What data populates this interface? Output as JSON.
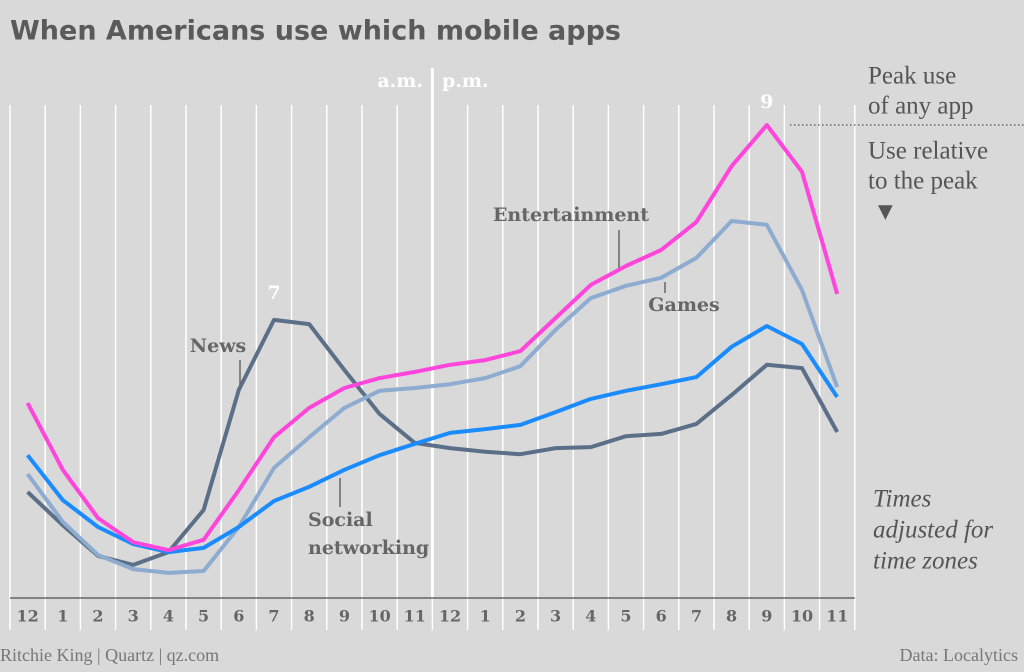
{
  "chart_data": {
    "type": "line",
    "title": "When Americans use which mobile apps",
    "categories": [
      "12",
      "1",
      "2",
      "3",
      "4",
      "5",
      "6",
      "7",
      "8",
      "9",
      "10",
      "11",
      "12",
      "1",
      "2",
      "3",
      "4",
      "5",
      "6",
      "7",
      "8",
      "9",
      "10",
      "11"
    ],
    "ylim": [
      0,
      100
    ],
    "series": [
      {
        "name": "Entertainment",
        "color": "#ff45dc",
        "values": [
          41.2,
          27.1,
          16.9,
          11.8,
          10.1,
          12.3,
          22.8,
          34.0,
          40.2,
          44.4,
          46.5,
          47.8,
          49.3,
          50.3,
          52.2,
          59.2,
          66.2,
          70.2,
          73.6,
          79.5,
          91.3,
          100,
          90.1,
          64.3
        ]
      },
      {
        "name": "Games",
        "color": "#8eabd0",
        "values": [
          26.2,
          16.1,
          9.1,
          6.1,
          5.3,
          5.7,
          15.0,
          27.5,
          34.0,
          40.2,
          43.8,
          44.4,
          45.2,
          46.5,
          49.0,
          56.7,
          63.4,
          66.0,
          67.7,
          71.9,
          79.7,
          78.9,
          65.1,
          44.6
        ]
      },
      {
        "name": "Social networking",
        "color": "#1a8cff",
        "values": [
          30.2,
          20.7,
          15.0,
          11.4,
          9.7,
          10.6,
          15.0,
          20.5,
          23.5,
          27.1,
          30.2,
          32.6,
          34.9,
          35.7,
          36.6,
          39.3,
          42.1,
          43.8,
          45.2,
          46.7,
          53.1,
          57.5,
          53.7,
          42.5
        ]
      },
      {
        "name": "News",
        "color": "#5b6f88",
        "values": [
          22.4,
          15.4,
          8.9,
          7.0,
          9.7,
          18.6,
          44.0,
          58.8,
          57.9,
          48.2,
          38.9,
          32.8,
          31.7,
          30.9,
          30.4,
          31.7,
          31.9,
          34.2,
          34.7,
          36.8,
          42.9,
          49.3,
          48.6,
          35.1
        ]
      }
    ],
    "annotations": {
      "am": "a.m.",
      "pm": "p.m.",
      "peak_news": "7",
      "peak_all": "9",
      "peak_note": [
        "Peak use",
        "of any app"
      ],
      "relative_note": [
        "Use relative",
        "to the peak"
      ],
      "arrow": "▼",
      "time_note": [
        "Times",
        "adjusted for",
        "time zones"
      ]
    },
    "footer": {
      "left": "Ritchie King | Quartz | qz.com",
      "right": "Data: Localytics"
    }
  }
}
